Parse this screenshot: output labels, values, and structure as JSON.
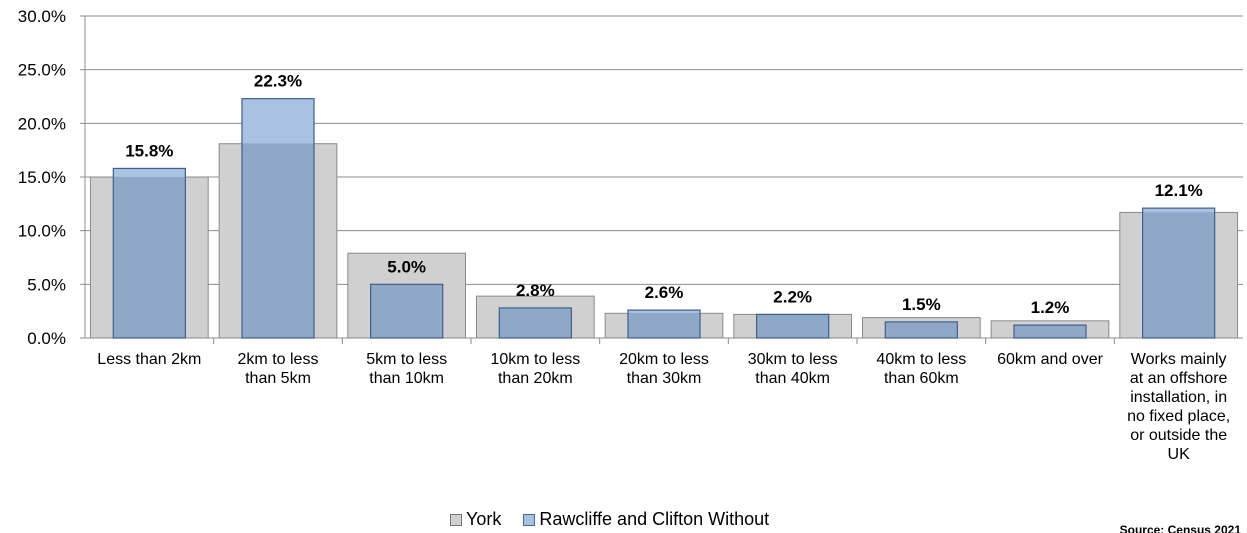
{
  "chart_data": {
    "type": "bar",
    "categories": [
      [
        "Less than 2km"
      ],
      [
        "2km to less",
        "than 5km"
      ],
      [
        "5km to less",
        "than 10km"
      ],
      [
        "10km to less",
        "than 20km"
      ],
      [
        "20km to less",
        "than 30km"
      ],
      [
        "30km to less",
        "than 40km"
      ],
      [
        "40km to less",
        "than 60km"
      ],
      [
        "60km and over"
      ],
      [
        "Works mainly",
        "at an offshore",
        "installation, in",
        "no fixed place,",
        "or outside the",
        "UK"
      ]
    ],
    "series": [
      {
        "name": "York",
        "color": "#d0d0d0",
        "values": [
          15.0,
          18.1,
          7.9,
          3.9,
          2.3,
          2.2,
          1.9,
          1.6,
          11.7
        ]
      },
      {
        "name": "Rawcliffe and Clifton Without",
        "color": "#8fa8c8",
        "values": [
          15.8,
          22.3,
          5.0,
          2.8,
          2.6,
          2.2,
          1.5,
          1.2,
          12.1
        ]
      }
    ],
    "data_labels": [
      "15.8%",
      "22.3%",
      "5.0%",
      "2.8%",
      "2.6%",
      "2.2%",
      "1.5%",
      "1.2%",
      "12.1%"
    ],
    "yticks": [
      "0.0%",
      "5.0%",
      "10.0%",
      "15.0%",
      "20.0%",
      "25.0%",
      "30.0%"
    ],
    "ylim": [
      0,
      30
    ],
    "grid": true,
    "legend_position": "bottom"
  },
  "source": "Source: Census 2021"
}
